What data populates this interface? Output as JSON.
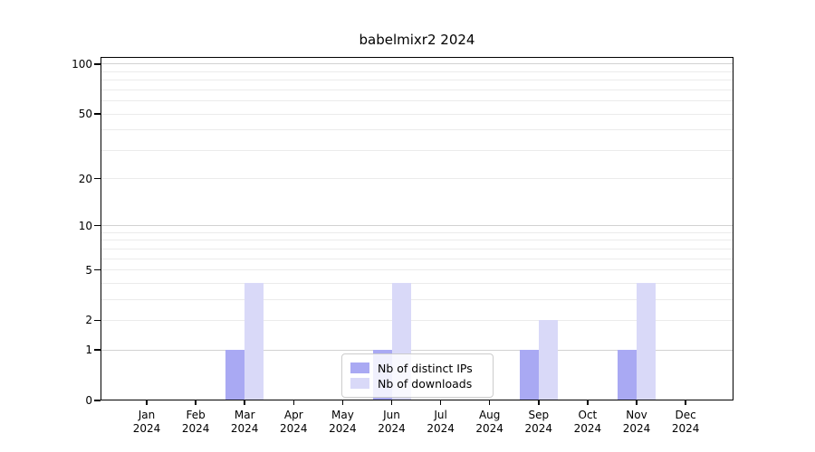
{
  "chart_data": {
    "type": "bar",
    "title": "babelmixr2 2024",
    "xlabel": "",
    "ylabel": "",
    "categories": [
      "Jan 2024",
      "Feb 2024",
      "Mar 2024",
      "Apr 2024",
      "May 2024",
      "Jun 2024",
      "Jul 2024",
      "Aug 2024",
      "Sep 2024",
      "Oct 2024",
      "Nov 2024",
      "Dec 2024"
    ],
    "series": [
      {
        "name": "Nb of distinct IPs",
        "key": "distinct-ips",
        "color": "#a9a9f3",
        "values": [
          0,
          0,
          1,
          0,
          0,
          1,
          0,
          0,
          1,
          0,
          1,
          0
        ]
      },
      {
        "name": "Nb of downloads",
        "key": "downloads",
        "color": "#d9d9f8",
        "values": [
          0,
          0,
          4,
          0,
          0,
          4,
          0,
          0,
          2,
          0,
          4,
          0
        ]
      }
    ],
    "y_axis": {
      "scale": "log1p",
      "ticks": [
        0,
        1,
        2,
        5,
        10,
        20,
        50,
        100
      ],
      "major_gridlines": [
        1,
        10,
        100
      ],
      "minor_gridlines": [
        2,
        3,
        4,
        5,
        6,
        7,
        8,
        9,
        20,
        30,
        40,
        50,
        60,
        70,
        80,
        90
      ],
      "range": [
        0,
        110.5
      ]
    },
    "legend": {
      "entries": [
        "Nb of distinct IPs",
        "Nb of downloads"
      ],
      "position": "inside-bottom-center"
    },
    "colors": {
      "bar_distinct_ips": "#a9a9f3",
      "bar_downloads": "#d9d9f8",
      "grid_major": "#d2d2d2",
      "grid_minor": "#ebebeb",
      "spine": "#000000",
      "text": "#000000",
      "legend_border": "#cccccc"
    },
    "grid": true
  }
}
